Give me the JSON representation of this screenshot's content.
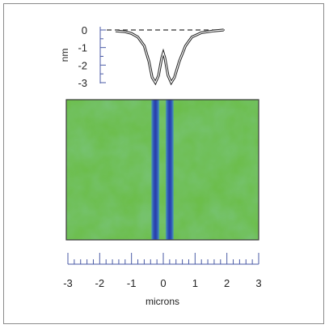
{
  "chart_data": [
    {
      "type": "line",
      "ylabel": "nm",
      "yticks": [
        0,
        -1,
        -2,
        -3
      ],
      "ylim": [
        -3,
        0
      ],
      "xlim": [
        -3,
        3
      ],
      "reference_line": {
        "y": 0,
        "style": "dashed"
      },
      "series": [
        {
          "x": [
            -1.5,
            -1.2,
            -1.0,
            -0.8,
            -0.6,
            -0.45,
            -0.35,
            -0.25,
            -0.15,
            -0.05,
            0.0,
            0.05,
            0.15,
            0.25,
            0.35,
            0.5,
            0.7,
            0.9,
            1.2,
            1.6,
            1.9
          ],
          "y": [
            -0.05,
            -0.1,
            -0.2,
            -0.4,
            -0.9,
            -1.8,
            -2.7,
            -3.0,
            -2.6,
            -1.6,
            -1.3,
            -1.6,
            -2.6,
            -3.0,
            -2.7,
            -1.8,
            -0.9,
            -0.4,
            -0.15,
            -0.05,
            0
          ]
        }
      ]
    },
    {
      "type": "heatmap",
      "xlabel": "microns",
      "xlim": [
        -3,
        3
      ],
      "xticks": [
        -3,
        -2,
        -1,
        0,
        1,
        2,
        3
      ],
      "background_color": "#6cbe4b",
      "line_color": "#2c3fb0",
      "features": [
        {
          "center_x": -0.25,
          "width": 0.25
        },
        {
          "center_x": 0.2,
          "width": 0.25
        }
      ]
    }
  ]
}
